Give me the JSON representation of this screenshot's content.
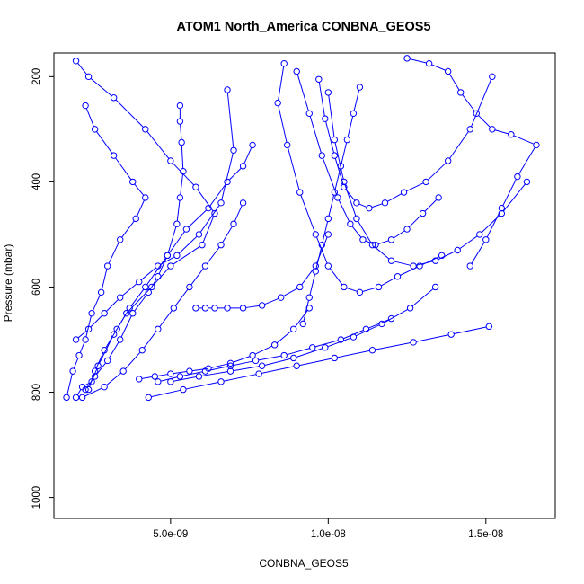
{
  "chart_data": {
    "type": "line",
    "title": "ATOM1 North_America CONBNA_GEOS5",
    "xlabel": "CONBNA_GEOS5",
    "ylabel": "Pressure (mbar)",
    "xlim": [
      1.3e-09,
      1.72e-08
    ],
    "ylim": [
      1040,
      155
    ],
    "y_reversed": true,
    "x_ticks": [
      5e-09,
      1e-08,
      1.5e-08
    ],
    "x_tick_labels": [
      "5.0e-09",
      "1.0e-08",
      "1.5e-08"
    ],
    "y_ticks": [
      200,
      400,
      600,
      800,
      1000
    ],
    "y_tick_labels": [
      "200",
      "400",
      "600",
      "800",
      "1000"
    ],
    "grid": false,
    "marker": "open-circle",
    "colors": {
      "series": "#0000ff",
      "axes": "#000000",
      "background": "#ffffff"
    },
    "series": [
      {
        "x": [
          2e-09,
          2.2e-09,
          2.5e-09,
          2.7e-09,
          3.2e-09,
          3.6e-09,
          4.4e-09,
          5e-09,
          6e-09,
          6.4e-09,
          5.8e-09,
          5e-09,
          4.2e-09,
          3.2e-09,
          2.4e-09,
          2e-09
        ],
        "y": [
          810,
          790,
          780,
          750,
          690,
          650,
          600,
          560,
          520,
          460,
          410,
          360,
          300,
          240,
          200,
          170
        ]
      },
      {
        "x": [
          1.7e-09,
          1.9e-09,
          2.1e-09,
          2.3e-09,
          2.5e-09,
          2.8e-09,
          3e-09,
          3.4e-09,
          3.9e-09,
          4.2e-09,
          3.8e-09,
          3.2e-09,
          2.6e-09,
          2.3e-09
        ],
        "y": [
          810,
          760,
          730,
          700,
          650,
          610,
          560,
          510,
          470,
          430,
          400,
          350,
          300,
          255
        ]
      },
      {
        "x": [
          2.4e-09,
          2.6e-09,
          2.9e-09,
          3.3e-09,
          3.7e-09,
          4.2e-09,
          4.9e-09,
          5.5e-09,
          6.2e-09,
          6.8e-09,
          7.3e-09,
          7.6e-09
        ],
        "y": [
          795,
          760,
          720,
          680,
          640,
          600,
          540,
          490,
          450,
          400,
          370,
          330
        ]
      },
      {
        "x": [
          2.2e-09,
          2.9e-09,
          3.5e-09,
          4.1e-09,
          4.6e-09,
          5.1e-09,
          5.6e-09,
          6.1e-09,
          6.6e-09,
          7e-09,
          7.3e-09
        ],
        "y": [
          810,
          790,
          760,
          720,
          680,
          640,
          600,
          560,
          520,
          480,
          440
        ]
      },
      {
        "x": [
          2e-09,
          2.4e-09,
          2.9e-09,
          3.4e-09,
          4e-09,
          4.6e-09,
          5.2e-09,
          5.9e-09,
          6.6e-09,
          7e-09,
          6.8e-09
        ],
        "y": [
          700,
          680,
          650,
          620,
          590,
          560,
          540,
          500,
          440,
          340,
          225
        ]
      },
      {
        "x": [
          5.3e-09,
          5.3e-09,
          5.35e-09,
          5.4e-09,
          5.3e-09,
          5.2e-09,
          4.9e-09,
          4.6e-09,
          4.3e-09,
          3.8e-09,
          3.4e-09,
          3e-09,
          2.6e-09,
          2.3e-09
        ],
        "y": [
          255,
          285,
          325,
          380,
          430,
          480,
          540,
          580,
          610,
          650,
          700,
          740,
          770,
          795
        ]
      },
      {
        "x": [
          4e-09,
          4.5e-09,
          5e-09,
          5.6e-09,
          6.2e-09,
          6.9e-09,
          7.6e-09,
          8.3e-09,
          8.9e-09,
          9.4e-09
        ],
        "y": [
          775,
          770,
          765,
          760,
          755,
          745,
          730,
          710,
          680,
          640
        ]
      },
      {
        "x": [
          4.6e-09,
          5.3e-09,
          6.1e-09,
          6.9e-09,
          7.7e-09,
          8.6e-09,
          9.5e-09,
          1.04e-08,
          1.12e-08,
          1.2e-08
        ],
        "y": [
          780,
          770,
          760,
          750,
          740,
          730,
          715,
          700,
          680,
          660
        ]
      },
      {
        "x": [
          5e-09,
          5.9e-09,
          6.9e-09,
          7.9e-09,
          8.9e-09,
          9.9e-09,
          1.08e-08,
          1.17e-08,
          1.26e-08,
          1.34e-08
        ],
        "y": [
          780,
          770,
          760,
          750,
          735,
          715,
          695,
          670,
          640,
          600
        ]
      },
      {
        "x": [
          4.3e-09,
          5.4e-09,
          6.6e-09,
          7.8e-09,
          9e-09,
          1.02e-08,
          1.14e-08,
          1.27e-08,
          1.39e-08,
          1.51e-08
        ],
        "y": [
          810,
          795,
          780,
          765,
          750,
          735,
          720,
          705,
          690,
          675
        ]
      },
      {
        "x": [
          5.8e-09,
          6.1e-09,
          6.4e-09,
          6.8e-09,
          7.3e-09,
          7.9e-09,
          8.5e-09,
          9.1e-09,
          9.6e-09,
          1e-08
        ],
        "y": [
          640,
          640,
          640,
          640,
          640,
          635,
          620,
          600,
          560,
          500
        ]
      },
      {
        "x": [
          8.6e-09,
          8.4e-09,
          8.7e-09,
          9.1e-09,
          9.6e-09,
          1e-08,
          1.05e-08,
          1.1e-08,
          1.16e-08,
          1.22e-08,
          1.29e-08,
          1.36e-08
        ],
        "y": [
          175,
          250,
          330,
          420,
          500,
          560,
          600,
          610,
          600,
          580,
          560,
          540
        ]
      },
      {
        "x": [
          9e-09,
          9.4e-09,
          9.8e-09,
          1.03e-08,
          1.07e-08,
          1.11e-08,
          1.15e-08,
          1.2e-08,
          1.25e-08,
          1.3e-08,
          1.35e-08
        ],
        "y": [
          190,
          270,
          350,
          430,
          480,
          510,
          520,
          510,
          490,
          460,
          430
        ]
      },
      {
        "x": [
          9.7e-09,
          9.9e-09,
          1.02e-08,
          1.05e-08,
          1.09e-08,
          1.13e-08,
          1.18e-08,
          1.24e-08,
          1.31e-08,
          1.38e-08,
          1.45e-08,
          1.52e-08
        ],
        "y": [
          205,
          280,
          350,
          410,
          440,
          450,
          440,
          420,
          400,
          360,
          300,
          200
        ]
      },
      {
        "x": [
          1e-08,
          1.02e-08,
          1.05e-08,
          1.09e-08,
          1.14e-08,
          1.2e-08,
          1.27e-08,
          1.34e-08,
          1.41e-08,
          1.48e-08,
          1.55e-08,
          1.63e-08
        ],
        "y": [
          230,
          320,
          400,
          470,
          520,
          550,
          560,
          550,
          530,
          500,
          460,
          400
        ]
      },
      {
        "x": [
          1.25e-08,
          1.32e-08,
          1.38e-08,
          1.42e-08,
          1.47e-08,
          1.52e-08,
          1.58e-08,
          1.66e-08,
          1.6e-08,
          1.55e-08,
          1.5e-08,
          1.45e-08
        ],
        "y": [
          165,
          175,
          190,
          230,
          270,
          300,
          310,
          330,
          390,
          450,
          510,
          560
        ]
      },
      {
        "x": [
          1.1e-08,
          1.08e-08,
          1.06e-08,
          1.04e-08,
          1.02e-08,
          1e-08,
          9.8e-09,
          9.6e-09,
          9.4e-09,
          9.2e-09
        ],
        "y": [
          220,
          270,
          320,
          370,
          420,
          470,
          520,
          570,
          620,
          670
        ]
      }
    ]
  }
}
